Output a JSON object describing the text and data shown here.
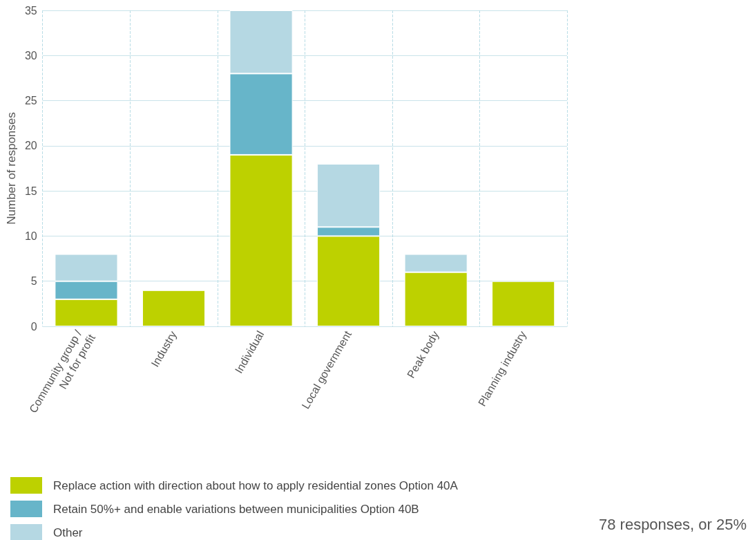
{
  "chart_data": {
    "type": "bar",
    "stacked": true,
    "ylabel": "Number of responses",
    "categories": [
      "Community group / Not for profit",
      "Industry",
      "Individual",
      "Local government",
      "Peak body",
      "Planning industry"
    ],
    "series": [
      {
        "name": "Replace action with direction about how to apply residential zones Option 40A",
        "color": "#bdd100",
        "values": [
          3,
          4,
          19,
          10,
          6,
          5
        ]
      },
      {
        "name": "Retain 50%+ and enable variations between municipalities Option 40B",
        "color": "#67b5c9",
        "values": [
          2,
          0,
          9,
          1,
          0,
          0
        ]
      },
      {
        "name": "Other",
        "color": "#b5d8e3",
        "values": [
          3,
          0,
          7,
          7,
          2,
          0
        ]
      }
    ],
    "ylim": [
      0,
      35
    ],
    "yticks": [
      0,
      5,
      10,
      15,
      20,
      25,
      30,
      35
    ],
    "grid": true,
    "legend": "bottom left",
    "annotations": [
      "78 responses, or 25%"
    ]
  }
}
